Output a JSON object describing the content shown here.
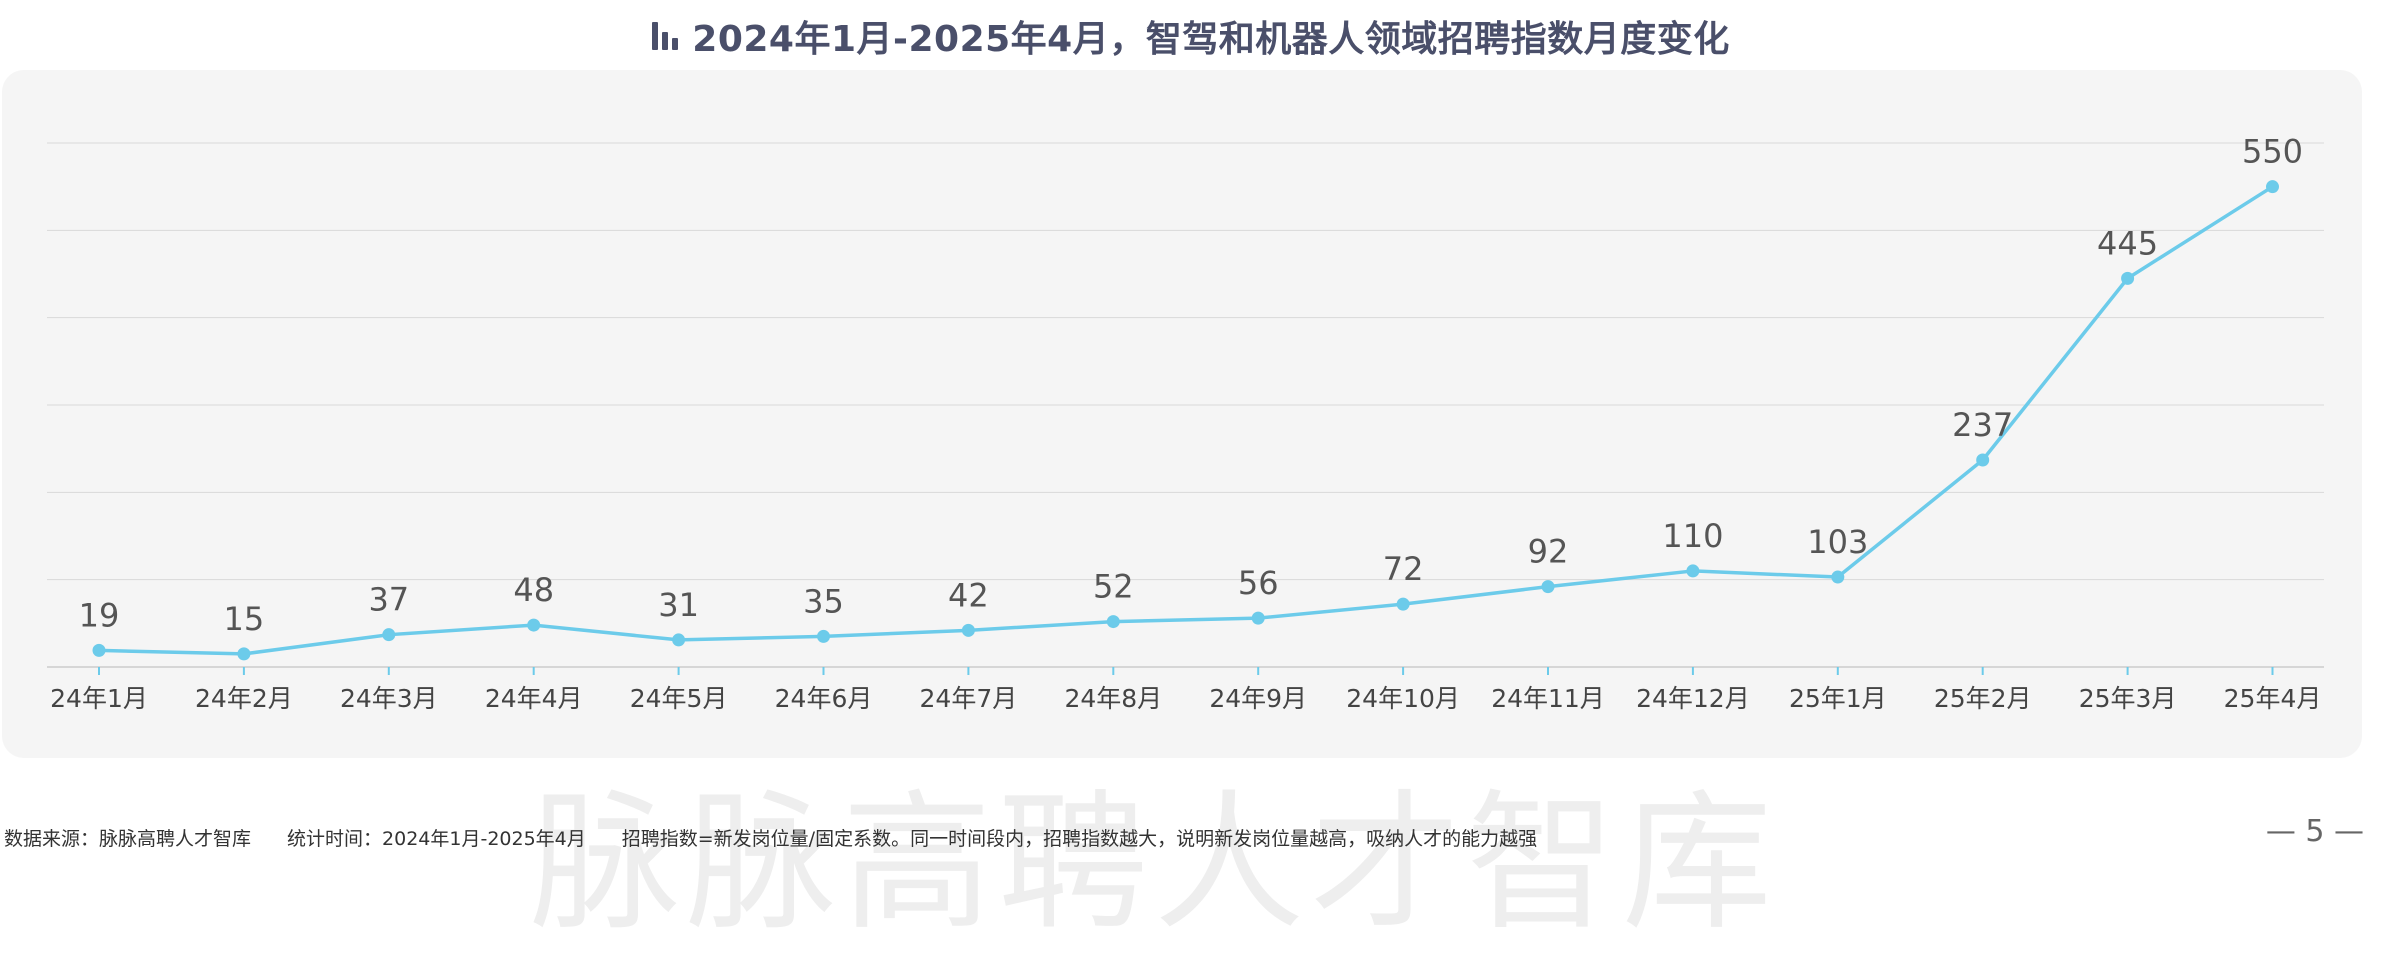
{
  "header": {
    "title": "2024年1月-2025年4月，智驾和机器人领域招聘指数月度变化",
    "icon": "bar-chart-icon"
  },
  "chart_data": {
    "type": "line",
    "title": "2024年1月-2025年4月，智驾和机器人领域招聘指数月度变化",
    "categories": [
      "24年1月",
      "24年2月",
      "24年3月",
      "24年4月",
      "24年5月",
      "24年6月",
      "24年7月",
      "24年8月",
      "24年9月",
      "24年10月",
      "24年11月",
      "24年12月",
      "25年1月",
      "25年2月",
      "25年3月",
      "25年4月"
    ],
    "series": [
      {
        "values": [
          19,
          15,
          37,
          48,
          31,
          35,
          42,
          52,
          56,
          72,
          92,
          110,
          103,
          237,
          445,
          550
        ]
      }
    ],
    "ylim": [
      0,
      600
    ],
    "grid": true,
    "xlabel": "",
    "ylabel": "",
    "colors": {
      "line": "#6ccbea",
      "grid": "#d9d9d9",
      "axis": "#cccccc",
      "tick": "#6ccbea",
      "label": "#555555",
      "panel": "#f5f5f5"
    }
  },
  "footer": {
    "source": "数据来源：脉脉高聘人才智库",
    "period": "统计时间：2024年1月-2025年4月",
    "note": "招聘指数=新发岗位量/固定系数。同一时间段内，招聘指数越大，说明新发岗位量越高，吸纳人才的能力越强"
  },
  "watermark": "脉脉高聘人才智库",
  "page": {
    "number": "— 5 —"
  }
}
